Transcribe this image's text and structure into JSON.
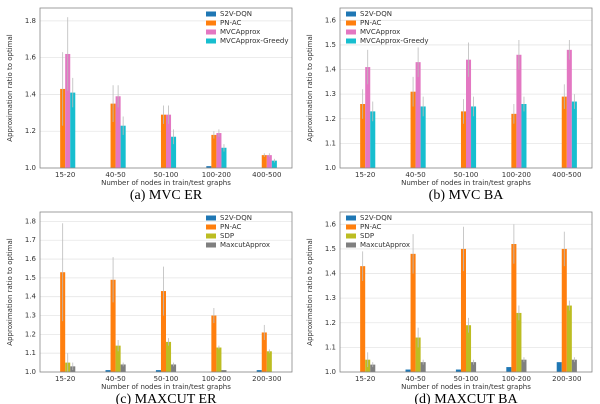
{
  "chart_data": [
    {
      "type": "bar",
      "caption": "(a) MVC ER",
      "x_label": "Number of nodes in train/test graphs",
      "y_label": "Approximation ratio to optimal",
      "categories": [
        "15-20",
        "40-50",
        "50-100",
        "100-200",
        "400-500"
      ],
      "ylim": [
        1,
        1.87
      ],
      "yticks": [
        {
          "value": 1,
          "label": "1.0"
        },
        1.2,
        1.4,
        1.6,
        1.8
      ],
      "grid": true,
      "legend": "upper right",
      "series": [
        {
          "name": "S2V-DQN",
          "color": "#1f77b4",
          "values": [
            1.0,
            1.0,
            1.0,
            1.01,
            1.0
          ]
        },
        {
          "name": "PN-AC",
          "color": "#ff7f0e",
          "values": [
            1.43,
            1.35,
            1.29,
            1.18,
            1.07
          ],
          "errors": [
            0.2,
            0.1,
            0.05,
            0.02,
            0.01
          ]
        },
        {
          "name": "MVCApprox",
          "color": "#e377c2",
          "values": [
            1.62,
            1.39,
            1.29,
            1.19,
            1.07
          ],
          "errors": [
            0.2,
            0.06,
            0.05,
            0.02,
            0.01
          ]
        },
        {
          "name": "MVCApprox-Greedy",
          "color": "#17becf",
          "values": [
            1.41,
            1.23,
            1.17,
            1.11,
            1.04
          ],
          "errors": [
            0.08,
            0.05,
            0.04,
            0.02,
            0.01
          ]
        }
      ]
    },
    {
      "type": "bar",
      "caption": "(b) MVC BA",
      "x_label": "Number of nodes in train/test graphs",
      "y_label": "Approximation ratio to optimal",
      "categories": [
        "15-20",
        "40-50",
        "50-100",
        "100-200",
        "400-500"
      ],
      "ylim": [
        1,
        1.65
      ],
      "yticks": [
        {
          "value": 1,
          "label": "1.0"
        },
        1.1,
        1.2,
        1.3,
        1.4,
        1.5,
        1.6
      ],
      "grid": true,
      "legend": "upper left",
      "series": [
        {
          "name": "S2V-DQN",
          "color": "#1f77b4",
          "values": [
            1.0,
            1.0,
            1.0,
            1.0,
            1.0
          ]
        },
        {
          "name": "PN-AC",
          "color": "#ff7f0e",
          "values": [
            1.26,
            1.31,
            1.23,
            1.22,
            1.29
          ],
          "errors": [
            0.06,
            0.06,
            0.05,
            0.04,
            0.05
          ]
        },
        {
          "name": "MVCApprox",
          "color": "#e377c2",
          "values": [
            1.41,
            1.43,
            1.44,
            1.46,
            1.48
          ],
          "errors": [
            0.07,
            0.06,
            0.07,
            0.06,
            0.04
          ]
        },
        {
          "name": "MVCApprox-Greedy",
          "color": "#17becf",
          "values": [
            1.23,
            1.25,
            1.25,
            1.26,
            1.27
          ],
          "errors": [
            0.04,
            0.04,
            0.04,
            0.03,
            0.03
          ]
        }
      ]
    },
    {
      "type": "bar",
      "caption": "(c) MAXCUT ER",
      "x_label": "Number of nodes in train/test graphs",
      "y_label": "Approximation ratio to optimal",
      "categories": [
        "15-20",
        "40-50",
        "50-100",
        "100-200",
        "200-300"
      ],
      "ylim": [
        1,
        1.85
      ],
      "yticks": [
        {
          "value": 1,
          "label": "1.0"
        },
        1.1,
        1.2,
        1.3,
        1.4,
        1.5,
        1.6,
        1.7,
        1.8
      ],
      "grid": true,
      "legend": "upper right",
      "series": [
        {
          "name": "S2V-DQN",
          "color": "#1f77b4",
          "values": [
            1.0,
            1.01,
            1.01,
            1.0,
            1.01
          ]
        },
        {
          "name": "PN-AC",
          "color": "#ff7f0e",
          "values": [
            1.53,
            1.49,
            1.43,
            1.3,
            1.21
          ],
          "errors": [
            0.26,
            0.12,
            0.13,
            0.04,
            0.04
          ]
        },
        {
          "name": "SDP",
          "color": "#bcbd22",
          "values": [
            1.05,
            1.14,
            1.16,
            1.13,
            1.11
          ],
          "errors": [
            0.05,
            0.03,
            0.02,
            0.01,
            0.01
          ]
        },
        {
          "name": "MaxcutApprox",
          "color": "#7f7f7f",
          "values": [
            1.03,
            1.04,
            1.04,
            1.01,
            1.0
          ],
          "errors": [
            0.02,
            0.01,
            0.01,
            0.0,
            0.0
          ]
        }
      ]
    },
    {
      "type": "bar",
      "caption": "(d) MAXCUT BA",
      "x_label": "Number of nodes in train/test graphs",
      "y_label": "Approximation ratio to optimal",
      "categories": [
        "15-20",
        "40-50",
        "50-100",
        "100-200",
        "200-300"
      ],
      "ylim": [
        1,
        1.65
      ],
      "yticks": [
        {
          "value": 1,
          "label": "1.0"
        },
        1.1,
        1.2,
        1.3,
        1.4,
        1.5,
        1.6
      ],
      "grid": true,
      "legend": "upper left",
      "series": [
        {
          "name": "S2V-DQN",
          "color": "#1f77b4",
          "values": [
            1.0,
            1.01,
            1.01,
            1.02,
            1.04
          ]
        },
        {
          "name": "PN-AC",
          "color": "#ff7f0e",
          "values": [
            1.43,
            1.48,
            1.5,
            1.52,
            1.5
          ],
          "errors": [
            0.06,
            0.08,
            0.09,
            0.08,
            0.07
          ]
        },
        {
          "name": "SDP",
          "color": "#bcbd22",
          "values": [
            1.05,
            1.14,
            1.19,
            1.24,
            1.27
          ],
          "errors": [
            0.03,
            0.04,
            0.03,
            0.03,
            0.02
          ]
        },
        {
          "name": "MaxcutApprox",
          "color": "#7f7f7f",
          "values": [
            1.03,
            1.04,
            1.04,
            1.05,
            1.05
          ],
          "errors": [
            0.01,
            0.01,
            0.01,
            0.01,
            0.01
          ]
        }
      ]
    }
  ]
}
